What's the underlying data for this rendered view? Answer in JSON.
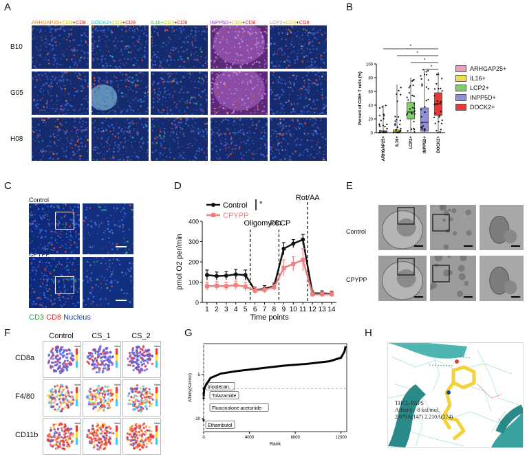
{
  "panels": {
    "A": {
      "letter": "A",
      "columns": [
        {
          "marker": "ARHGAP25+",
          "cd3": "CD3",
          "cd8": "CD8",
          "color": "#e67e22"
        },
        {
          "marker": "DOCK2+",
          "cd3": "CD3",
          "cd8": "CD8",
          "color": "#2bb6c4"
        },
        {
          "marker": "IL16+",
          "cd3": "CD3",
          "cd8": "CD8",
          "color": "#4caf50"
        },
        {
          "marker": "INPP5D+",
          "cd3": "CD3",
          "cd8": "CD8",
          "color": "#8e44ad"
        },
        {
          "marker": "LCP2+",
          "cd3": "CD3",
          "cd8": "CD8",
          "color": "#9e9e9e"
        }
      ],
      "rows": [
        "B10",
        "G05",
        "H08"
      ]
    },
    "B": {
      "letter": "B",
      "chart_data": {
        "type": "box",
        "ylabel": "Percent of CD8+ T cells (%)",
        "ylim": [
          0,
          100
        ],
        "yticks": [
          0,
          20,
          40,
          60,
          80,
          100
        ],
        "categories": [
          "ARHGAP25+",
          "IL16+",
          "LCP2+",
          "INPP5D+",
          "DOCK2+"
        ],
        "colors": [
          "#e8a0c0",
          "#e8e04a",
          "#7fcf6a",
          "#8f90d8",
          "#e53935"
        ],
        "boxes": [
          {
            "q1": 0,
            "median": 1,
            "q3": 3,
            "whisker_low": 0,
            "whisker_high": 40
          },
          {
            "q1": 0,
            "median": 1,
            "q3": 4,
            "whisker_low": 0,
            "whisker_high": 70
          },
          {
            "q1": 20,
            "median": 30,
            "q3": 44,
            "whisker_low": 0,
            "whisker_high": 80
          },
          {
            "q1": 2,
            "median": 15,
            "q3": 36,
            "whisker_low": 0,
            "whisker_high": 92
          },
          {
            "q1": 25,
            "median": 42,
            "q3": 58,
            "whisker_low": 0,
            "whisker_high": 88
          }
        ],
        "significance": [
          "*",
          "*",
          "*",
          "*"
        ],
        "legend": [
          "ARHGAP25+",
          "IL16+",
          "LCP2+",
          "INPP5D+",
          "DOCK2+"
        ]
      }
    },
    "C": {
      "letter": "C",
      "rows": [
        "Control",
        "CPYPP"
      ],
      "caption_cd3": "CD3",
      "caption_cd8": "CD8",
      "caption_nucleus": "Nucleus"
    },
    "D": {
      "letter": "D",
      "chart_data": {
        "type": "line",
        "xlabel": "Time points",
        "ylabel": "pmol O2 per/min",
        "ylim": [
          0,
          400
        ],
        "yticks": [
          0,
          100,
          200,
          300,
          400
        ],
        "x": [
          1,
          2,
          3,
          4,
          5,
          6,
          7,
          8,
          9,
          10,
          11,
          12,
          13,
          14
        ],
        "series": [
          {
            "name": "Control",
            "color": "#111111",
            "values": [
              135,
              130,
              132,
              138,
              135,
              60,
              68,
              80,
              265,
              290,
              310,
              45,
              45,
              43
            ],
            "errors": [
              25,
              20,
              20,
              25,
              25,
              15,
              15,
              15,
              30,
              20,
              25,
              12,
              12,
              12
            ]
          },
          {
            "name": "CPYPP",
            "color": "#f08080",
            "values": [
              80,
              82,
              80,
              85,
              78,
              58,
              62,
              75,
              170,
              190,
              210,
              40,
              40,
              40
            ],
            "errors": [
              20,
              20,
              20,
              20,
              20,
              15,
              15,
              15,
              40,
              35,
              55,
              15,
              12,
              12
            ]
          }
        ],
        "annotations": [
          {
            "text": "Oligomycin",
            "after_x": 5.5
          },
          {
            "text": "FCCP",
            "after_x": 8.5
          },
          {
            "text": "Rot/AA",
            "after_x": 11.5
          }
        ],
        "significance": "*"
      }
    },
    "E": {
      "letter": "E",
      "rows": [
        "Control",
        "CPYPP"
      ]
    },
    "F": {
      "letter": "F",
      "columns": [
        "Control",
        "CS_1",
        "CS_2"
      ],
      "rows": [
        "CD8a",
        "F4/80",
        "CD11b"
      ],
      "legend_title": "Value"
    },
    "G": {
      "letter": "G",
      "chart_data": {
        "type": "scatter",
        "xlabel": "Rank",
        "ylabel": "Affinity(Kal/mol)",
        "xlim": [
          0,
          12500
        ],
        "ylim": [
          -11.5,
          -1.5
        ],
        "xticks": [
          0,
          4000,
          8000,
          12000
        ],
        "yticks": [
          -10,
          -5
        ],
        "curve": [
          [
            0,
            -7.5
          ],
          [
            50,
            -6.6
          ],
          [
            200,
            -6.2
          ],
          [
            600,
            -5.4
          ],
          [
            1500,
            -4.9
          ],
          [
            3000,
            -4.6
          ],
          [
            5000,
            -4.3
          ],
          [
            7000,
            -4.0
          ],
          [
            9000,
            -3.8
          ],
          [
            11000,
            -3.5
          ],
          [
            12000,
            -3.1
          ],
          [
            12300,
            -2.4
          ],
          [
            12400,
            -1.8
          ]
        ],
        "labels": [
          {
            "text": "Irinotecan",
            "rank": 0,
            "affinity": -6.6
          },
          {
            "text": "Tolazamide",
            "rank": 0,
            "affinity": -7.1
          },
          {
            "text": "Fluocinolone acetonide",
            "rank": 0,
            "affinity": -7.7
          },
          {
            "text": "Ethambutol",
            "rank": 0,
            "affinity": -10.2
          }
        ],
        "ref_h": -6.6,
        "ref_v": 0
      }
    },
    "H": {
      "letter": "H",
      "line1": "THCL-PAPS",
      "line2": "Affinity: -8 kal/mol,",
      "line3": "2.079A(147) 2.210A(274)"
    }
  }
}
